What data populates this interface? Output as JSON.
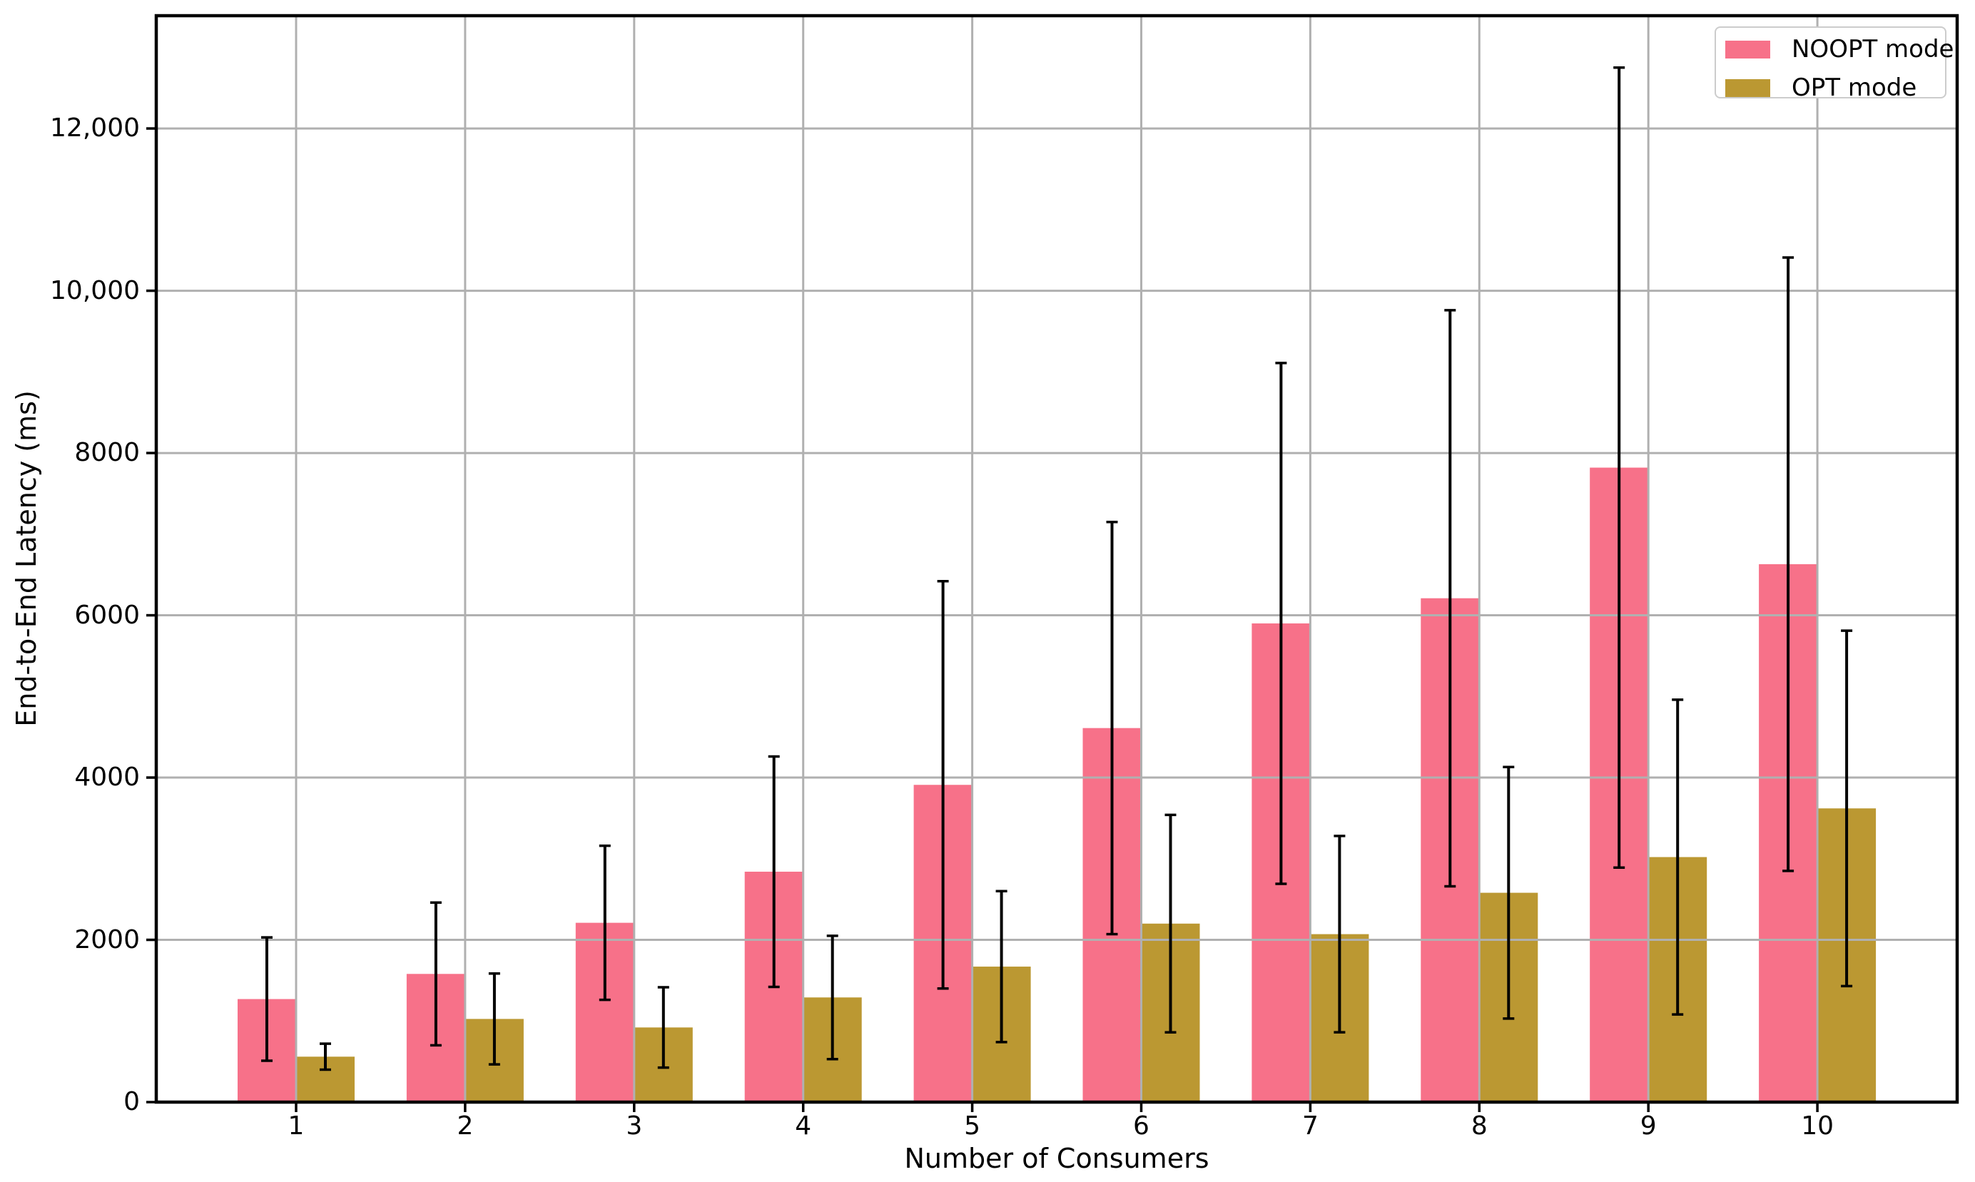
{
  "chart_data": {
    "type": "bar",
    "title": "",
    "xlabel": "Number of Consumers",
    "ylabel": "End-to-End Latency (ms)",
    "categories": [
      "1",
      "2",
      "3",
      "4",
      "5",
      "6",
      "7",
      "8",
      "9",
      "10"
    ],
    "series": [
      {
        "name": "NOOPT mode",
        "color": "#f77189",
        "values": [
          1270,
          1580,
          2210,
          2840,
          3910,
          4610,
          5900,
          6210,
          7820,
          6630
        ],
        "errors": [
          760,
          880,
          950,
          1420,
          2510,
          2540,
          3210,
          3550,
          4930,
          3780
        ]
      },
      {
        "name": "OPT mode",
        "color": "#bb9832",
        "values": [
          560,
          1025,
          920,
          1290,
          1670,
          2200,
          2070,
          2580,
          3020,
          3620
        ],
        "errors": [
          160,
          560,
          495,
          760,
          930,
          1340,
          1210,
          1550,
          1940,
          2190
        ]
      }
    ],
    "ylim": [
      0,
      13390
    ],
    "yticks": [
      {
        "value": 0,
        "label": "0"
      },
      {
        "value": 2000,
        "label": "2000"
      },
      {
        "value": 4000,
        "label": "4000"
      },
      {
        "value": 6000,
        "label": "6000"
      },
      {
        "value": 8000,
        "label": "8000"
      },
      {
        "value": 10000,
        "label": "10,000"
      },
      {
        "value": 12000,
        "label": "12,000"
      }
    ],
    "grid": true,
    "legend_position": "upper right",
    "colors": {
      "grid": "#b0b0b0",
      "spine": "#000000",
      "error_bar": "#000000",
      "legend_border": "#cccccc",
      "background": "#ffffff"
    }
  }
}
